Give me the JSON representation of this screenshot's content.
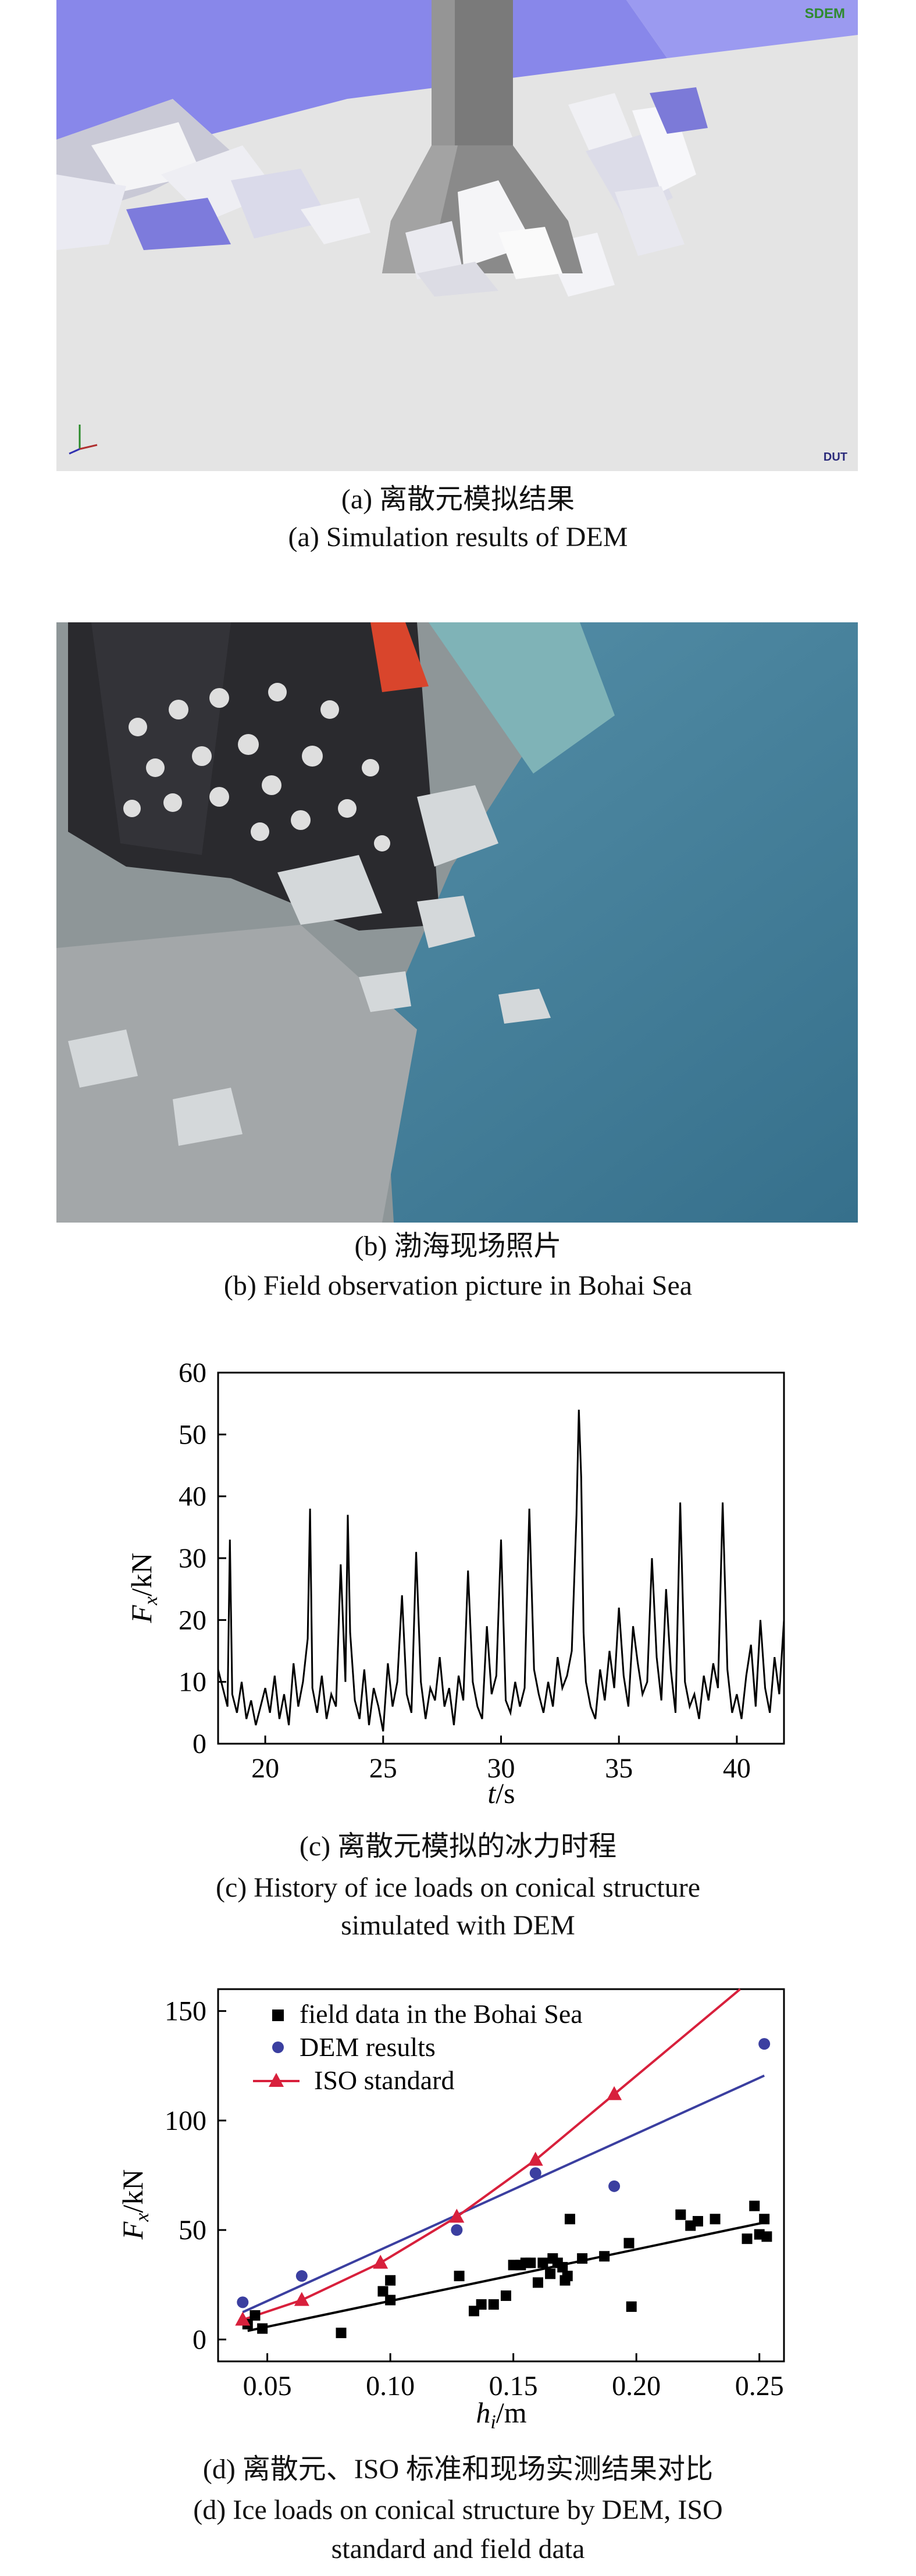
{
  "panels": {
    "a": {
      "caption_cn": "(a) 离散元模拟结果",
      "caption_en": "(a) Simulation results of DEM",
      "logo": "SDEM",
      "watermark": "DUT"
    },
    "b": {
      "caption_cn": "(b) 渤海现场照片",
      "caption_en": "(b) Field observation picture in Bohai Sea"
    },
    "c": {
      "caption_cn": "(c) 离散元模拟的冰力时程",
      "caption_en_line1": "(c) History of ice loads on conical structure",
      "caption_en_line2": "simulated with DEM"
    },
    "d": {
      "caption_cn": "(d) 离散元、ISO 标准和现场实测结果对比",
      "caption_en_line1": "(d) Ice loads on conical structure by DEM, ISO",
      "caption_en_line2": "standard and field data"
    }
  },
  "chart_data": [
    {
      "type": "line",
      "xlabel_main": "t",
      "xlabel_unit": "/s",
      "ylabel_main": "F",
      "ylabel_sub": "x",
      "ylabel_unit": "/kN",
      "xlim": [
        18,
        42
      ],
      "ylim": [
        0,
        60
      ],
      "xticks": [
        20,
        25,
        30,
        35,
        40
      ],
      "yticks": [
        0,
        10,
        20,
        30,
        40,
        50,
        60
      ],
      "series": [
        {
          "color": "#000000",
          "x": [
            18.0,
            18.2,
            18.4,
            18.5,
            18.6,
            18.8,
            19.0,
            19.2,
            19.4,
            19.6,
            19.8,
            20.0,
            20.2,
            20.4,
            20.6,
            20.8,
            21.0,
            21.2,
            21.4,
            21.6,
            21.8,
            21.9,
            22.0,
            22.2,
            22.4,
            22.6,
            22.8,
            23.0,
            23.2,
            23.4,
            23.5,
            23.6,
            23.8,
            24.0,
            24.2,
            24.4,
            24.6,
            24.8,
            25.0,
            25.2,
            25.4,
            25.6,
            25.8,
            26.0,
            26.2,
            26.4,
            26.6,
            26.8,
            27.0,
            27.2,
            27.4,
            27.6,
            27.8,
            28.0,
            28.2,
            28.4,
            28.6,
            28.8,
            29.0,
            29.2,
            29.4,
            29.6,
            29.8,
            30.0,
            30.2,
            30.4,
            30.6,
            30.8,
            31.0,
            31.2,
            31.4,
            31.6,
            31.8,
            32.0,
            32.2,
            32.4,
            32.6,
            32.8,
            33.0,
            33.2,
            33.3,
            33.4,
            33.5,
            33.6,
            33.8,
            34.0,
            34.2,
            34.4,
            34.6,
            34.8,
            35.0,
            35.2,
            35.4,
            35.6,
            35.8,
            36.0,
            36.2,
            36.4,
            36.6,
            36.8,
            37.0,
            37.2,
            37.4,
            37.6,
            37.8,
            38.0,
            38.2,
            38.4,
            38.6,
            38.8,
            39.0,
            39.2,
            39.4,
            39.6,
            39.8,
            40.0,
            40.2,
            40.4,
            40.6,
            40.8,
            41.0,
            41.2,
            41.4,
            41.6,
            41.8,
            42.0
          ],
          "values": [
            12,
            9,
            6,
            33,
            8,
            5,
            10,
            4,
            7,
            3,
            6,
            9,
            5,
            11,
            4,
            8,
            3,
            13,
            6,
            10,
            17,
            38,
            9,
            5,
            11,
            4,
            8,
            6,
            29,
            10,
            37,
            18,
            7,
            4,
            12,
            3,
            9,
            6,
            2,
            13,
            6,
            10,
            24,
            8,
            5,
            31,
            10,
            4,
            9,
            7,
            14,
            6,
            9,
            3,
            11,
            7,
            28,
            10,
            6,
            4,
            19,
            8,
            11,
            33,
            7,
            5,
            10,
            6,
            9,
            38,
            12,
            8,
            5,
            10,
            6,
            14,
            9,
            11,
            15,
            37,
            54,
            43,
            18,
            10,
            6,
            4,
            12,
            7,
            15,
            9,
            22,
            11,
            6,
            19,
            13,
            8,
            10,
            30,
            14,
            7,
            25,
            12,
            5,
            39,
            10,
            6,
            8,
            4,
            11,
            7,
            13,
            9,
            39,
            12,
            5,
            8,
            4,
            11,
            16,
            6,
            20,
            9,
            5,
            14,
            8,
            20
          ]
        }
      ]
    },
    {
      "type": "scatter",
      "xlabel_main": "h",
      "xlabel_sub": "i",
      "xlabel_unit": "/m",
      "ylabel_main": "F",
      "ylabel_sub": "x",
      "ylabel_unit": "/kN",
      "xlim": [
        0.03,
        0.26
      ],
      "ylim": [
        -10,
        160
      ],
      "xticks": [
        0.05,
        0.1,
        0.15,
        0.2,
        0.25
      ],
      "xtick_labels": [
        "0.05",
        "0.10",
        "0.15",
        "0.20",
        "0.25"
      ],
      "yticks": [
        0,
        50,
        100,
        150
      ],
      "legend": {
        "position": "top-left",
        "entries": [
          "field data in the Bohai Sea",
          "DEM results",
          "ISO standard"
        ]
      },
      "series": [
        {
          "name": "field data in the Bohai Sea",
          "color": "#000000",
          "marker": "square",
          "x": [
            0.042,
            0.045,
            0.048,
            0.08,
            0.097,
            0.1,
            0.1,
            0.128,
            0.134,
            0.137,
            0.142,
            0.147,
            0.15,
            0.153,
            0.155,
            0.157,
            0.16,
            0.162,
            0.165,
            0.166,
            0.168,
            0.17,
            0.171,
            0.172,
            0.173,
            0.178,
            0.187,
            0.197,
            0.198,
            0.218,
            0.222,
            0.225,
            0.232,
            0.245,
            0.248,
            0.25,
            0.252,
            0.253
          ],
          "values": [
            7,
            11,
            5,
            3,
            22,
            18,
            27,
            29,
            13,
            16,
            16,
            20,
            34,
            34,
            35,
            35,
            26,
            35,
            30,
            37,
            35,
            33,
            27,
            29,
            55,
            37,
            38,
            44,
            15,
            57,
            52,
            54,
            55,
            46,
            61,
            48,
            55,
            47
          ]
        },
        {
          "name": "DEM results",
          "color": "#3b3fa0",
          "marker": "circle",
          "x": [
            0.04,
            0.064,
            0.127,
            0.159,
            0.191,
            0.252
          ],
          "values": [
            17,
            29,
            50,
            76,
            70,
            135
          ]
        },
        {
          "name": "ISO standard",
          "color": "#d8203c",
          "marker": "triangle",
          "x": [
            0.04,
            0.064,
            0.096,
            0.127,
            0.159,
            0.191
          ],
          "values": [
            9,
            18,
            35,
            56,
            82,
            112
          ]
        }
      ]
    }
  ]
}
